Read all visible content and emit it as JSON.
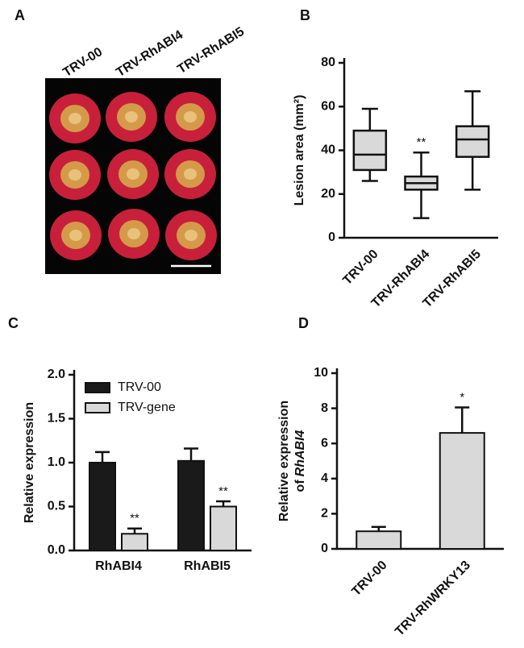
{
  "photo_panel": {
    "label": "A",
    "labels": [
      "TRV-00",
      "TRV-RhABI4",
      "TRV-RhABI5"
    ]
  },
  "chart_data": [
    {
      "type": "box",
      "label": "B",
      "ylabel": "Lesion area (mm²)",
      "categories": [
        "TRV-00",
        "TRV-RhABI4",
        "TRV-RhABI5"
      ],
      "boxes": [
        {
          "min": 26,
          "q1": 31,
          "median": 38,
          "q3": 49,
          "max": 59
        },
        {
          "min": 9,
          "q1": 22,
          "median": 25,
          "q3": 28,
          "max": 39
        },
        {
          "min": 22,
          "q1": 37,
          "median": 45,
          "q3": 51,
          "max": 67
        }
      ],
      "color": "#d9d9d9",
      "ylim": [
        0,
        80
      ],
      "yticks": [
        0,
        20,
        40,
        60,
        80
      ],
      "annotations": [
        {
          "x": "TRV-RhABI4",
          "text": "**"
        }
      ]
    },
    {
      "type": "bar",
      "label": "C",
      "ylabel": "Relative expression",
      "categories": [
        "RhABI4",
        "RhABI5"
      ],
      "series": [
        {
          "name": "TRV-00",
          "color": "#1a1a1a",
          "values": [
            1.0,
            1.02
          ],
          "errors": [
            0.12,
            0.14
          ]
        },
        {
          "name": "TRV-gene",
          "color": "#d9d9d9",
          "values": [
            0.19,
            0.5
          ],
          "errors": [
            0.06,
            0.06
          ]
        }
      ],
      "ylim": [
        0,
        2
      ],
      "yticks": [
        {
          "value": 0,
          "label": "0.0"
        },
        {
          "value": 0.5,
          "label": "0.5"
        },
        {
          "value": 1,
          "label": "1.0"
        },
        {
          "value": 1.5,
          "label": "1.5"
        },
        {
          "value": 2,
          "label": "2.0"
        }
      ],
      "legend": "top-left",
      "annotations": [
        {
          "x": "RhABI4",
          "series": "TRV-gene",
          "text": "**"
        },
        {
          "x": "RhABI5",
          "series": "TRV-gene",
          "text": "**"
        }
      ]
    },
    {
      "type": "bar",
      "label": "D",
      "ylabel": [
        "Relative expression",
        "of",
        "RhABI4"
      ],
      "categories": [
        "TRV-00",
        "TRV-RhWRKY13"
      ],
      "values": [
        1.0,
        6.6
      ],
      "errors": [
        0.25,
        1.45
      ],
      "color": "#d9d9d9",
      "ylim": [
        0,
        10
      ],
      "yticks": [
        0,
        2,
        4,
        6,
        8,
        10
      ],
      "annotations": [
        {
          "x": "TRV-RhWRKY13",
          "text": "*"
        }
      ]
    }
  ]
}
